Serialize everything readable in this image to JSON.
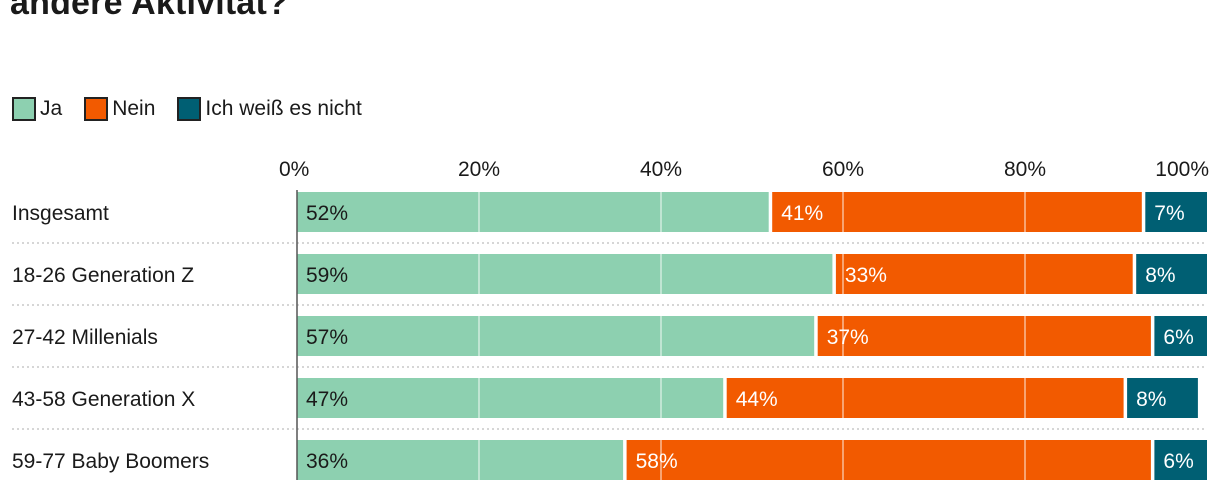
{
  "chart_data": {
    "type": "bar",
    "orientation": "horizontal",
    "stacked": true,
    "title": "andere Aktivität?",
    "categories": [
      "Insgesamt",
      "18-26 Generation Z",
      "27-42 Millenials",
      "43-58 Generation X",
      "59-77 Baby Boomers"
    ],
    "series": [
      {
        "name": "Ja",
        "color": "#8dd0b0",
        "values": [
          52,
          59,
          57,
          47,
          36
        ]
      },
      {
        "name": "Nein",
        "color": "#f25a00",
        "values": [
          41,
          33,
          37,
          44,
          58
        ]
      },
      {
        "name": "Ich weiß es nicht",
        "color": "#005f73",
        "values": [
          7,
          8,
          6,
          8,
          6
        ]
      }
    ],
    "xlim": [
      0,
      100
    ],
    "xticks": [
      "0%",
      "20%",
      "40%",
      "60%",
      "80%",
      "100%"
    ],
    "xtick_values": [
      0,
      20,
      40,
      60,
      80,
      100
    ],
    "value_suffix": "%",
    "legend_position": "top-left",
    "grid": true
  }
}
